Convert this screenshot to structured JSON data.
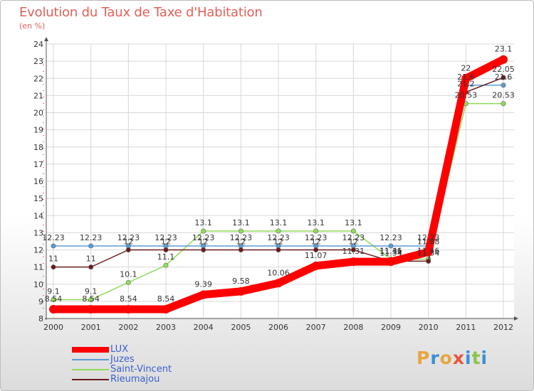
{
  "chart_data": {
    "type": "line",
    "title": "Evolution du Taux de Taxe d'Habitation",
    "ylabel": "(en %)",
    "x": [
      "2000",
      "2001",
      "2002",
      "2003",
      "2004",
      "2005",
      "2006",
      "2007",
      "2008",
      "2009",
      "2010",
      "2011",
      "2012"
    ],
    "ylim": [
      8,
      24
    ],
    "yticks": [
      "8",
      "9",
      "10",
      "11",
      "12",
      "13",
      "14",
      "15",
      "16",
      "17",
      "18",
      "19",
      "20",
      "21",
      "22",
      "23",
      "24"
    ],
    "series": [
      {
        "name": "LUX",
        "color": "#ff0000",
        "values": [
          8.54,
          8.54,
          8.54,
          8.54,
          9.39,
          9.58,
          10.06,
          11.07,
          11.31,
          11.31,
          11.88,
          22,
          23.1
        ],
        "labels": [
          "8.54",
          "8.54",
          "8.54",
          "8.54",
          "9.39",
          "9.58",
          "10.06",
          "11.07",
          "11.31",
          "11.31",
          "11.88",
          "22",
          "23.1"
        ]
      },
      {
        "name": "Juzes",
        "color": "#5b9bd5",
        "values": [
          12.23,
          12.23,
          12.23,
          12.23,
          12.23,
          12.23,
          12.23,
          12.23,
          12.23,
          12.23,
          12.23,
          21.6,
          21.6
        ],
        "labels": [
          "12.23",
          "12.23",
          "12.23",
          "12.23",
          "12.23",
          "12.23",
          "12.23",
          "12.23",
          "12.23",
          "12.23",
          "12.23",
          "21.6",
          "21.6"
        ]
      },
      {
        "name": "Saint-Vincent",
        "color": "#8fdc5a",
        "values": [
          9.1,
          9.1,
          10.1,
          11.1,
          13.1,
          13.1,
          13.1,
          13.1,
          13.1,
          11.46,
          11.46,
          20.53,
          20.53
        ],
        "labels": [
          "9.1",
          "9.1",
          "10.1",
          "11.1",
          "13.1",
          "13.1",
          "13.1",
          "13.1",
          "13.1",
          "11.46",
          "11.46",
          "20.53",
          "20.53"
        ]
      },
      {
        "name": "Rieumajou",
        "color": "#6b1a1a",
        "values": [
          11,
          11,
          12,
          12,
          12,
          12,
          12,
          12,
          12,
          11.34,
          11.34,
          21.2,
          22.05
        ],
        "labels": [
          "11",
          "11",
          "12",
          "12",
          "12",
          "12",
          "12",
          "12",
          "12",
          "11.34",
          "11.34",
          "21.2",
          "22.05"
        ]
      }
    ]
  },
  "logo": {
    "letters": [
      "P",
      "r",
      "o",
      "x",
      "i",
      "t",
      "i"
    ],
    "colors": [
      "#e8a640",
      "#3a8fd8",
      "#e8a640",
      "#e8553a",
      "#3a8fd8",
      "#8bc34a",
      "#3a8fd8"
    ]
  }
}
